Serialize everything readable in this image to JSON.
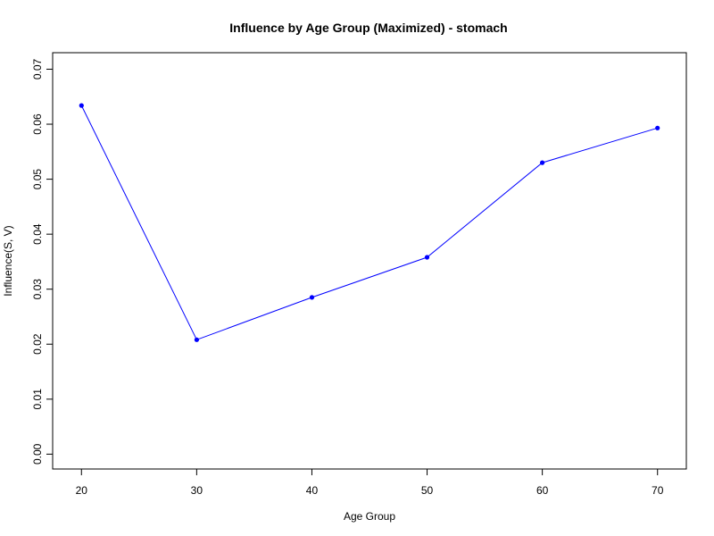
{
  "chart_data": {
    "type": "line",
    "title": "Influence by Age Group (Maximized) - stomach",
    "xlabel": "Age Group",
    "ylabel": "Influence(S, V)",
    "x": [
      20,
      30,
      40,
      50,
      60,
      70
    ],
    "x_tick_labels": [
      "20",
      "30",
      "40",
      "50",
      "60",
      "70"
    ],
    "y_tick_labels": [
      "0.00",
      "0.01",
      "0.02",
      "0.03",
      "0.04",
      "0.05",
      "0.06",
      "0.07"
    ],
    "y_ticks": [
      0.0,
      0.01,
      0.02,
      0.03,
      0.04,
      0.05,
      0.06,
      0.07
    ],
    "xlim": [
      17.5,
      72.5
    ],
    "ylim": [
      -0.0027,
      0.073
    ],
    "series": [
      {
        "values": [
          0.0634,
          0.0208,
          0.0285,
          0.0358,
          0.053,
          0.0593
        ],
        "color": "#0000ff"
      }
    ],
    "grid": false,
    "legend": "none"
  }
}
